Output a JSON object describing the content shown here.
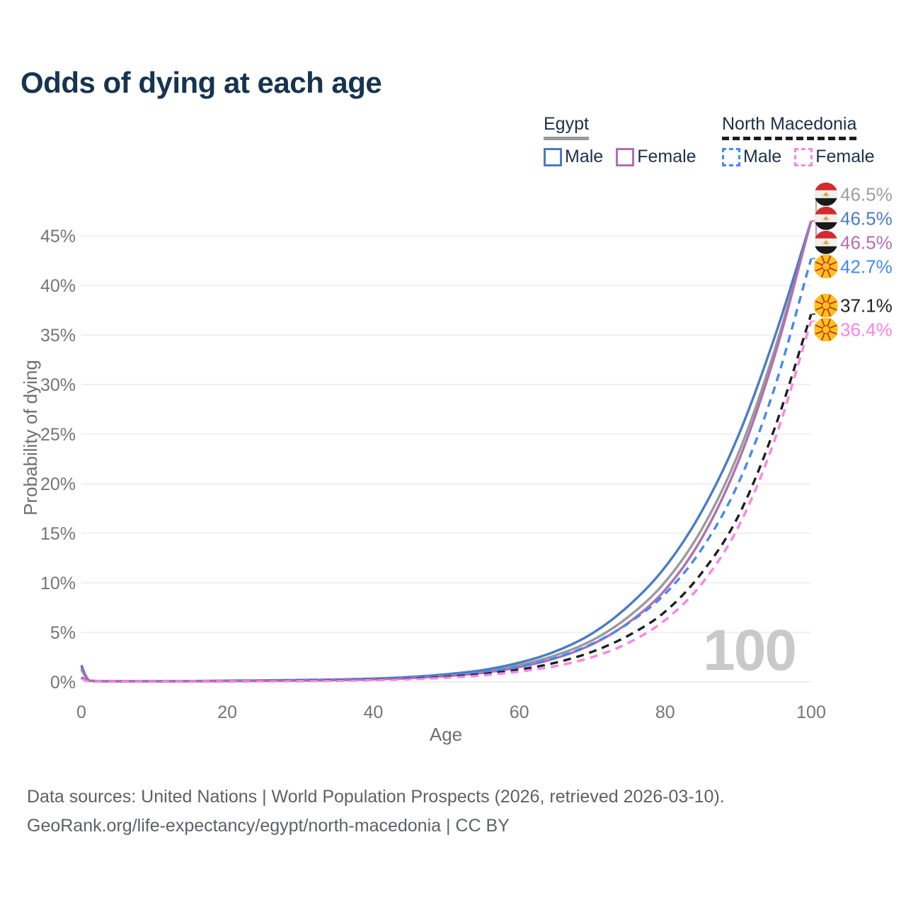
{
  "title": "Odds of dying at each age",
  "legend": {
    "groups": [
      {
        "country": "Egypt",
        "line_style": "solid",
        "underline_color": "#9b9b9b",
        "items": [
          {
            "label": "Male",
            "color": "#4a7cc2"
          },
          {
            "label": "Female",
            "color": "#b26fb2"
          }
        ]
      },
      {
        "country": "North Macedonia",
        "line_style": "dashed",
        "underline_color": "#1c1c1c",
        "items": [
          {
            "label": "Male",
            "color": "#4489f0"
          },
          {
            "label": "Female",
            "color": "#fb83e5"
          }
        ]
      }
    ]
  },
  "chart_data": {
    "type": "line",
    "title": "Odds of dying at each age",
    "xlabel": "Age",
    "ylabel": "Probability of dying",
    "xlim": [
      0,
      100
    ],
    "ylim": [
      0,
      48
    ],
    "grid": "horizontal",
    "watermark": "100",
    "xticks": [
      {
        "value": 0,
        "label": "0"
      },
      {
        "value": 20,
        "label": "20"
      },
      {
        "value": 40,
        "label": "40"
      },
      {
        "value": 60,
        "label": "60"
      },
      {
        "value": 80,
        "label": "80"
      },
      {
        "value": 100,
        "label": "100"
      }
    ],
    "yticks": [
      {
        "value": 0,
        "label": "0%"
      },
      {
        "value": 5,
        "label": "5%"
      },
      {
        "value": 10,
        "label": "10%"
      },
      {
        "value": 15,
        "label": "15%"
      },
      {
        "value": 20,
        "label": "20%"
      },
      {
        "value": 25,
        "label": "25%"
      },
      {
        "value": 30,
        "label": "30%"
      },
      {
        "value": 35,
        "label": "35%"
      },
      {
        "value": 40,
        "label": "40%"
      },
      {
        "value": 45,
        "label": "45%"
      }
    ],
    "x_ages": [
      0,
      1,
      5,
      10,
      15,
      20,
      25,
      30,
      35,
      40,
      45,
      50,
      55,
      60,
      65,
      70,
      75,
      80,
      85,
      90,
      95,
      100
    ],
    "series": [
      {
        "id": "egypt-both",
        "country": "Egypt",
        "group": "both",
        "flag": "egypt",
        "style": "solid",
        "color": "#9a9a9a",
        "label_color": "#9e9e9e",
        "end_value": 46.5,
        "end_label": "46.5%",
        "values": [
          1.5,
          0.13,
          0.05,
          0.05,
          0.08,
          0.11,
          0.14,
          0.17,
          0.22,
          0.3,
          0.44,
          0.68,
          1.05,
          1.7,
          2.7,
          4.2,
          6.6,
          10.1,
          15.4,
          23.0,
          33.5,
          46.5
        ]
      },
      {
        "id": "egypt-male",
        "country": "Egypt",
        "group": "male",
        "flag": "egypt",
        "style": "solid",
        "color": "#4a7cc2",
        "label_color": "#4a7cc2",
        "end_value": 46.5,
        "end_label": "46.5%",
        "values": [
          1.7,
          0.15,
          0.06,
          0.06,
          0.09,
          0.13,
          0.16,
          0.2,
          0.25,
          0.34,
          0.5,
          0.78,
          1.2,
          1.95,
          3.1,
          4.9,
          7.7,
          11.6,
          17.2,
          24.8,
          34.8,
          46.5
        ]
      },
      {
        "id": "egypt-female",
        "country": "Egypt",
        "group": "female",
        "flag": "egypt",
        "style": "solid",
        "color": "#b26fb2",
        "label_color": "#b26fb2",
        "end_value": 46.5,
        "end_label": "46.5%",
        "values": [
          1.3,
          0.12,
          0.05,
          0.04,
          0.06,
          0.09,
          0.11,
          0.14,
          0.19,
          0.26,
          0.39,
          0.6,
          0.92,
          1.5,
          2.4,
          3.8,
          6.0,
          9.3,
          14.5,
          22.2,
          32.9,
          46.5
        ]
      },
      {
        "id": "north-macedonia-male",
        "country": "North Macedonia",
        "group": "male",
        "flag": "north-macedonia",
        "style": "dashed",
        "color": "#4489f0",
        "label_color": "#4489f0",
        "end_value": 42.7,
        "end_label": "42.7%",
        "values": [
          0.45,
          0.05,
          0.03,
          0.03,
          0.05,
          0.08,
          0.11,
          0.14,
          0.18,
          0.26,
          0.41,
          0.64,
          1.0,
          1.55,
          2.45,
          3.85,
          5.95,
          8.9,
          13.4,
          20.0,
          29.7,
          42.7
        ]
      },
      {
        "id": "north-macedonia-both",
        "country": "North Macedonia",
        "group": "both",
        "flag": "north-macedonia",
        "style": "dashed",
        "color": "#1f1f1f",
        "label_color": "#212121",
        "end_value": 37.1,
        "end_label": "37.1%",
        "values": [
          0.4,
          0.05,
          0.03,
          0.03,
          0.04,
          0.06,
          0.09,
          0.11,
          0.15,
          0.21,
          0.32,
          0.51,
          0.8,
          1.25,
          1.95,
          3.05,
          4.7,
          7.1,
          11.0,
          16.7,
          25.6,
          37.1
        ]
      },
      {
        "id": "north-macedonia-female",
        "country": "North Macedonia",
        "group": "female",
        "flag": "north-macedonia",
        "style": "dashed",
        "color": "#fb83e5",
        "label_color": "#fb83e5",
        "end_value": 36.4,
        "end_label": "36.4%",
        "values": [
          0.35,
          0.04,
          0.02,
          0.02,
          0.03,
          0.05,
          0.07,
          0.09,
          0.12,
          0.18,
          0.27,
          0.43,
          0.67,
          1.05,
          1.6,
          2.5,
          3.95,
          6.25,
          9.9,
          15.6,
          24.4,
          36.4
        ]
      }
    ]
  },
  "footer": {
    "line1": "Data sources: United Nations | World Population Prospects (2026, retrieved 2026-03-10).",
    "line2": "GeoRank.org/life-expectancy/egypt/north-macedonia | CC BY"
  }
}
